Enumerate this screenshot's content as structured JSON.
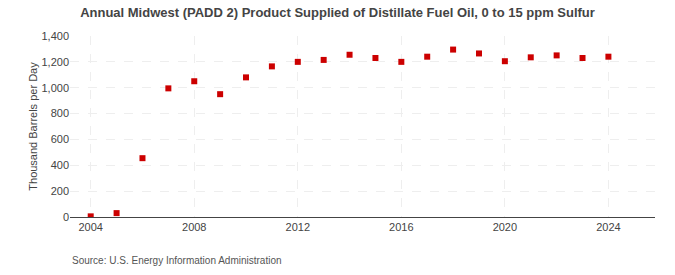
{
  "chart_data": {
    "type": "scatter",
    "title": "Annual Midwest (PADD 2) Product Supplied of Distillate Fuel Oil, 0 to 15 ppm Sulfur",
    "y_label": "Thousand Barrels per Day",
    "annotations": [
      "Source: U.S. Energy Information Administration"
    ],
    "x": [
      2004,
      2005,
      2006,
      2007,
      2008,
      2009,
      2010,
      2011,
      2012,
      2013,
      2014,
      2015,
      2016,
      2017,
      2018,
      2019,
      2020,
      2021,
      2022,
      2023,
      2024
    ],
    "values": [
      5,
      30,
      455,
      995,
      1050,
      950,
      1080,
      1165,
      1200,
      1215,
      1255,
      1230,
      1200,
      1240,
      1295,
      1265,
      1205,
      1235,
      1250,
      1230,
      1240
    ],
    "color": "#cc0000",
    "marker": "square",
    "xlim": [
      2003.2,
      2025.8
    ],
    "xticks": [
      2004,
      2008,
      2012,
      2016,
      2020,
      2024
    ],
    "ylim": [
      0,
      1400
    ],
    "yticks": [
      0,
      200,
      400,
      600,
      800,
      {
        "value": 1000,
        "label": "1,000"
      },
      {
        "value": 1200,
        "label": "1,200"
      },
      {
        "value": 1400,
        "label": "1,400"
      }
    ],
    "grid": true
  }
}
